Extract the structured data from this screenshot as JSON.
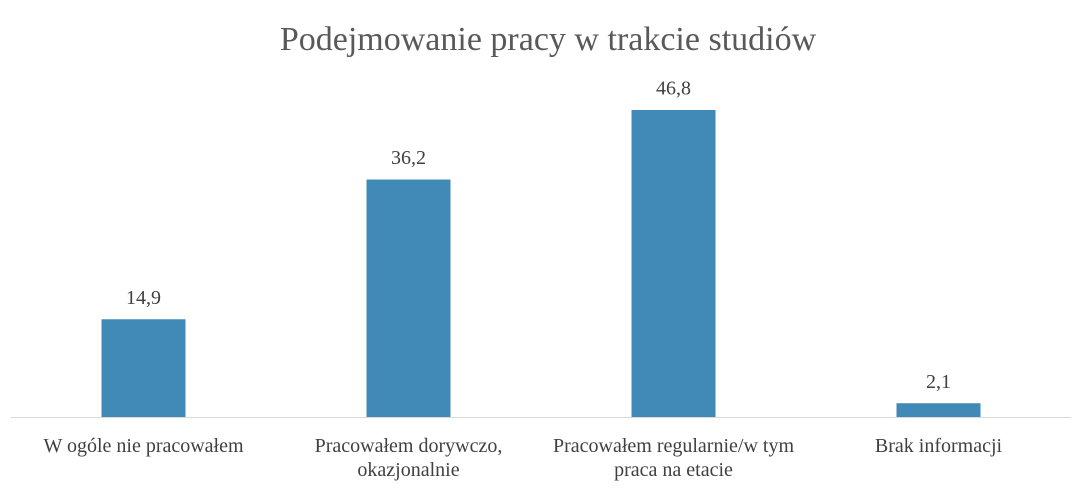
{
  "chart_data": {
    "type": "bar",
    "title": "Podejmowanie pracy w trakcie studiów",
    "categories": [
      "W ogóle nie pracowałem",
      "Pracowałem dorywczo, okazjonalnie",
      "Pracowałem regularnie/w tym praca na etacie",
      "Brak informacji"
    ],
    "values": [
      14.9,
      36.2,
      46.8,
      2.1
    ],
    "value_labels": [
      "14,9",
      "36,2",
      "46,8",
      "2,1"
    ],
    "color": "#4189b6"
  }
}
